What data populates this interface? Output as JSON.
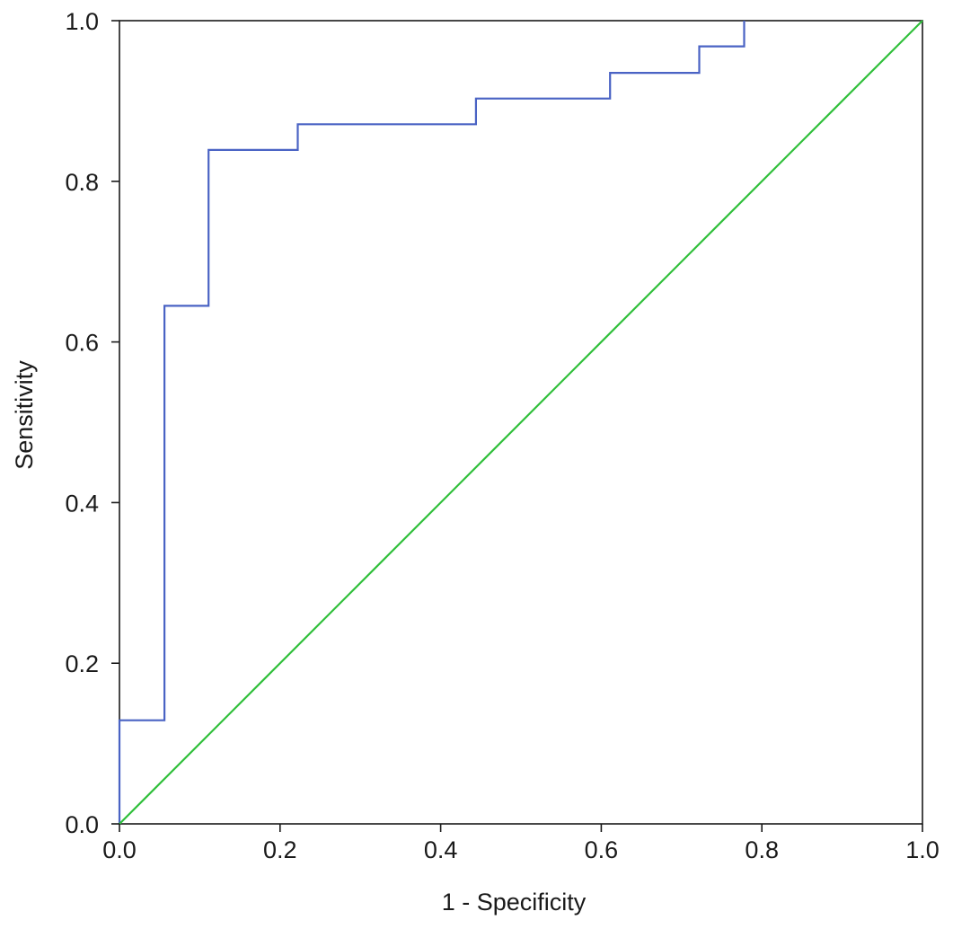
{
  "chart_data": {
    "type": "line",
    "title": "",
    "xlabel": "1 - Specificity",
    "ylabel": "Sensitivity",
    "xlim": [
      0.0,
      1.0
    ],
    "ylim": [
      0.0,
      1.0
    ],
    "x_ticks": [
      "0.0",
      "0.2",
      "0.4",
      "0.6",
      "0.8",
      "1.0"
    ],
    "y_ticks": [
      "0.0",
      "0.2",
      "0.4",
      "0.6",
      "0.8",
      "1.0"
    ],
    "grid": false,
    "legend": "none",
    "series": [
      {
        "color": "#4a63c4",
        "x": [
          0.0,
          0.0,
          0.056,
          0.056,
          0.111,
          0.111,
          0.222,
          0.222,
          0.444,
          0.444,
          0.611,
          0.611,
          0.722,
          0.722,
          0.778,
          0.778
        ],
        "y": [
          0.0,
          0.129,
          0.129,
          0.645,
          0.645,
          0.839,
          0.839,
          0.871,
          0.871,
          0.903,
          0.903,
          0.935,
          0.935,
          0.968,
          0.968,
          1.0
        ]
      },
      {
        "color": "#2fbf3a",
        "x": [
          0.0,
          1.0
        ],
        "y": [
          0.0,
          1.0
        ]
      }
    ]
  }
}
